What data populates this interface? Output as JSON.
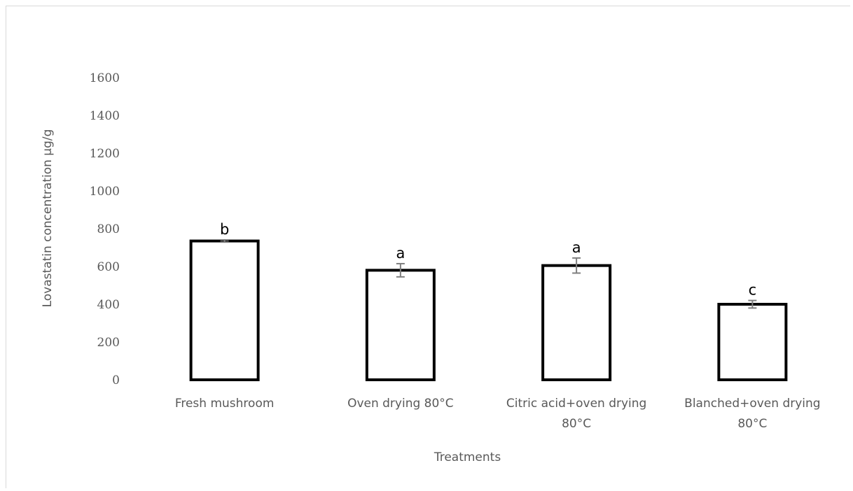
{
  "chart_data": {
    "type": "bar",
    "title": "",
    "xlabel": "Treatments",
    "ylabel": "Lovastatin concentration  µg/g",
    "ylim": [
      0,
      1600
    ],
    "yticks": [
      0,
      200,
      400,
      600,
      800,
      1000,
      1200,
      1400,
      1600
    ],
    "grid": false,
    "categories": [
      [
        "Fresh mushroom"
      ],
      [
        "Oven drying 80°C"
      ],
      [
        "Citric acid+oven drying",
        "80°C"
      ],
      [
        "Blanched+oven drying",
        "80°C"
      ]
    ],
    "values": [
      735,
      580,
      605,
      400
    ],
    "errors": [
      6,
      35,
      40,
      20
    ],
    "significance_letters": [
      "b",
      "a",
      "a",
      "c"
    ],
    "colors": {
      "bar_fill": "#ffffff",
      "bar_edge": "#000000",
      "error_bar": "#7f7f7f",
      "text": "#595959"
    }
  }
}
